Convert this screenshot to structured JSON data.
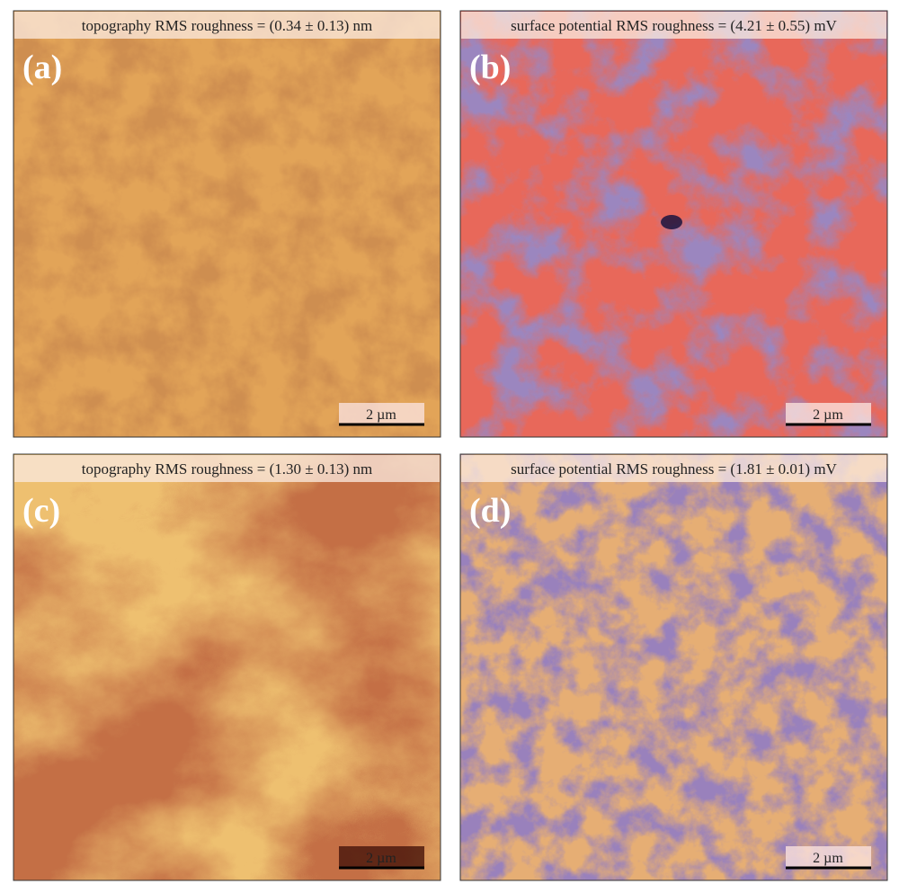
{
  "panels": [
    {
      "label": "(a)",
      "title": "topography RMS roughness = (0.34 ± 0.13) nm",
      "scale_bar": "2 µm"
    },
    {
      "label": "(b)",
      "title": "surface potential RMS roughness = (4.21 ± 0.55) mV",
      "scale_bar": "2 µm"
    },
    {
      "label": "(c)",
      "title": "topography RMS roughness = (1.30 ± 0.13) nm",
      "scale_bar": "2 µm"
    },
    {
      "label": "(d)",
      "title": "surface potential RMS roughness = (1.81 ± 0.01) mV",
      "scale_bar": "2 µm"
    }
  ]
}
